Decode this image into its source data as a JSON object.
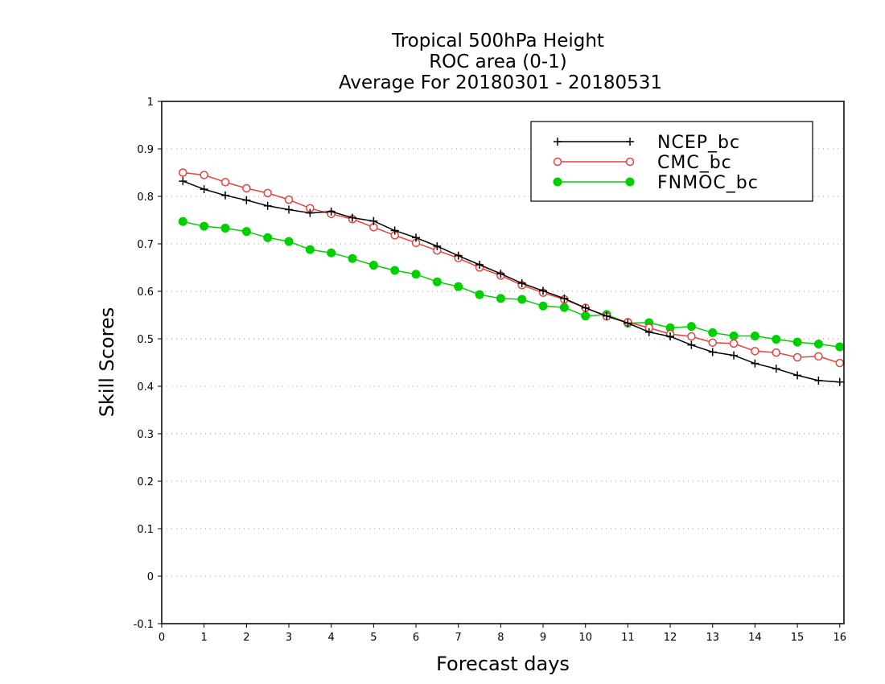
{
  "chart_data": {
    "type": "line",
    "title_lines": [
      "Tropical 500hPa Height",
      "ROC area (0-1)",
      "Average For 20180301 - 20180531"
    ],
    "xlabel": "Forecast days",
    "ylabel": "Skill Scores",
    "xlim": [
      0,
      16.1
    ],
    "ylim": [
      -0.1,
      1
    ],
    "x_ticks": [
      "0",
      "1",
      "2",
      "3",
      "4",
      "5",
      "6",
      "7",
      "8",
      "9",
      "10",
      "11",
      "12",
      "13",
      "14",
      "15",
      "16"
    ],
    "y_ticks": [
      "-0.1",
      "0",
      "0.1",
      "0.2",
      "0.3",
      "0.4",
      "0.5",
      "0.6",
      "0.7",
      "0.8",
      "0.9",
      "1"
    ],
    "grid": "horizontal dotted",
    "legend_position": "top-right",
    "x": [
      0.5,
      1,
      1.5,
      2,
      2.5,
      3,
      3.5,
      4,
      4.5,
      5,
      5.5,
      6,
      6.5,
      7,
      7.5,
      8,
      8.5,
      9,
      9.5,
      10,
      10.5,
      11,
      11.5,
      12,
      12.5,
      13,
      13.5,
      14,
      14.5,
      15,
      15.5,
      16
    ],
    "series": [
      {
        "name": "NCEP_bc",
        "color": "#000000",
        "marker": "plus",
        "values": [
          0.832,
          0.815,
          0.802,
          0.792,
          0.78,
          0.772,
          0.765,
          0.768,
          0.755,
          0.748,
          0.728,
          0.713,
          0.695,
          0.675,
          0.656,
          0.637,
          0.617,
          0.601,
          0.585,
          0.565,
          0.548,
          0.533,
          0.514,
          0.505,
          0.487,
          0.472,
          0.465,
          0.448,
          0.437,
          0.423,
          0.412,
          0.409
        ]
      },
      {
        "name": "CMC_bc",
        "color": "#e84040",
        "marker": "open-circle",
        "values": [
          0.85,
          0.845,
          0.83,
          0.817,
          0.807,
          0.793,
          0.775,
          0.763,
          0.752,
          0.735,
          0.718,
          0.702,
          0.686,
          0.67,
          0.65,
          0.633,
          0.613,
          0.597,
          0.583,
          0.565,
          0.547,
          0.535,
          0.523,
          0.51,
          0.505,
          0.492,
          0.49,
          0.474,
          0.471,
          0.461,
          0.463,
          0.449
        ]
      },
      {
        "name": "FNMOC_bc",
        "color": "#00d000",
        "marker": "filled-circle",
        "values": [
          0.747,
          0.737,
          0.733,
          0.726,
          0.713,
          0.705,
          0.688,
          0.681,
          0.669,
          0.655,
          0.644,
          0.636,
          0.62,
          0.61,
          0.593,
          0.585,
          0.583,
          0.569,
          0.566,
          0.548,
          0.551,
          0.533,
          0.534,
          0.523,
          0.526,
          0.513,
          0.506,
          0.506,
          0.499,
          0.493,
          0.489,
          0.483
        ]
      }
    ]
  }
}
